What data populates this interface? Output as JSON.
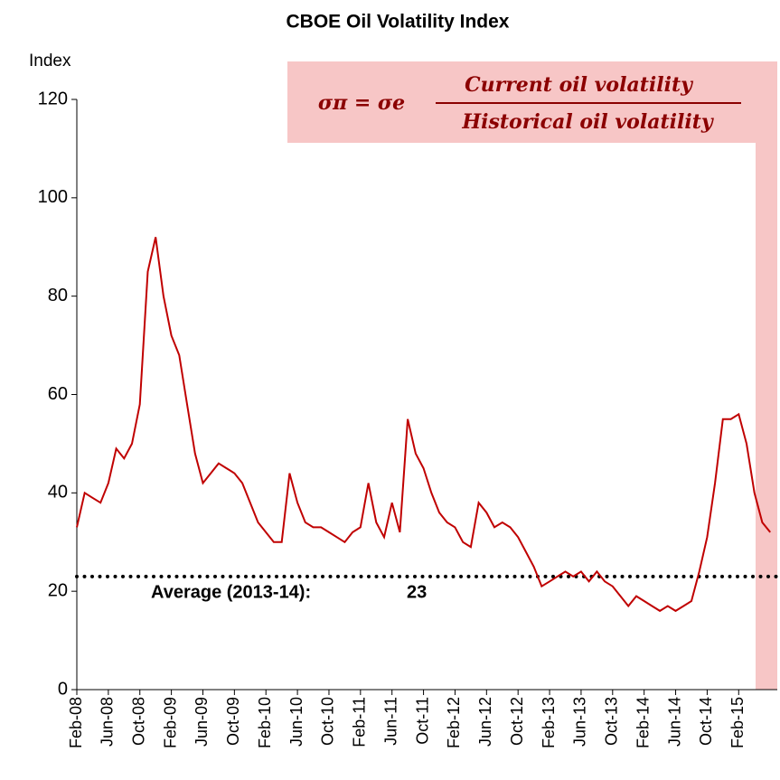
{
  "chart_data": {
    "type": "line",
    "title": "CBOE Oil Volatility Index",
    "y_label": "Index",
    "formula": {
      "left": "σπ = σe",
      "numerator": "Current oil volatility",
      "denominator": "Historical oil volatility"
    },
    "average": {
      "label": "Average (2013-14):",
      "value": 23
    },
    "color": "#c00000",
    "categories": [
      "Feb-08",
      null,
      null,
      null,
      "Jun-08",
      null,
      null,
      null,
      "Oct-08",
      null,
      null,
      null,
      "Feb-09",
      null,
      null,
      null,
      "Jun-09",
      null,
      null,
      null,
      "Oct-09",
      null,
      null,
      null,
      "Feb-10",
      null,
      null,
      null,
      "Jun-10",
      null,
      null,
      null,
      "Oct-10",
      null,
      null,
      null,
      "Feb-11",
      null,
      null,
      null,
      "Jun-11",
      null,
      null,
      null,
      "Oct-11",
      null,
      null,
      null,
      "Feb-12",
      null,
      null,
      null,
      "Jun-12",
      null,
      null,
      null,
      "Oct-12",
      null,
      null,
      null,
      "Feb-13",
      null,
      null,
      null,
      "Jun-13",
      null,
      null,
      null,
      "Oct-13",
      null,
      null,
      null,
      "Feb-14",
      null,
      null,
      null,
      "Jun-14",
      null,
      null,
      null,
      "Oct-14",
      null,
      null,
      null,
      "Feb-15",
      null,
      null,
      null,
      null
    ],
    "values": [
      33,
      40,
      39,
      38,
      42,
      49,
      47,
      50,
      58,
      85,
      92,
      80,
      72,
      68,
      58,
      48,
      42,
      44,
      46,
      45,
      44,
      42,
      38,
      34,
      32,
      30,
      30,
      44,
      38,
      34,
      33,
      33,
      32,
      31,
      30,
      32,
      33,
      42,
      34,
      31,
      38,
      32,
      55,
      48,
      45,
      40,
      36,
      34,
      33,
      30,
      29,
      38,
      36,
      33,
      34,
      33,
      31,
      28,
      25,
      21,
      22,
      23,
      24,
      23,
      24,
      22,
      24,
      22,
      21,
      19,
      17,
      19,
      18,
      17,
      16,
      17,
      16,
      17,
      18,
      24,
      31,
      42,
      55,
      55,
      56,
      50,
      40,
      34,
      32
    ],
    "ylim": [
      0,
      120
    ],
    "yticks": [
      0,
      20,
      40,
      60,
      80,
      100,
      120
    ]
  }
}
